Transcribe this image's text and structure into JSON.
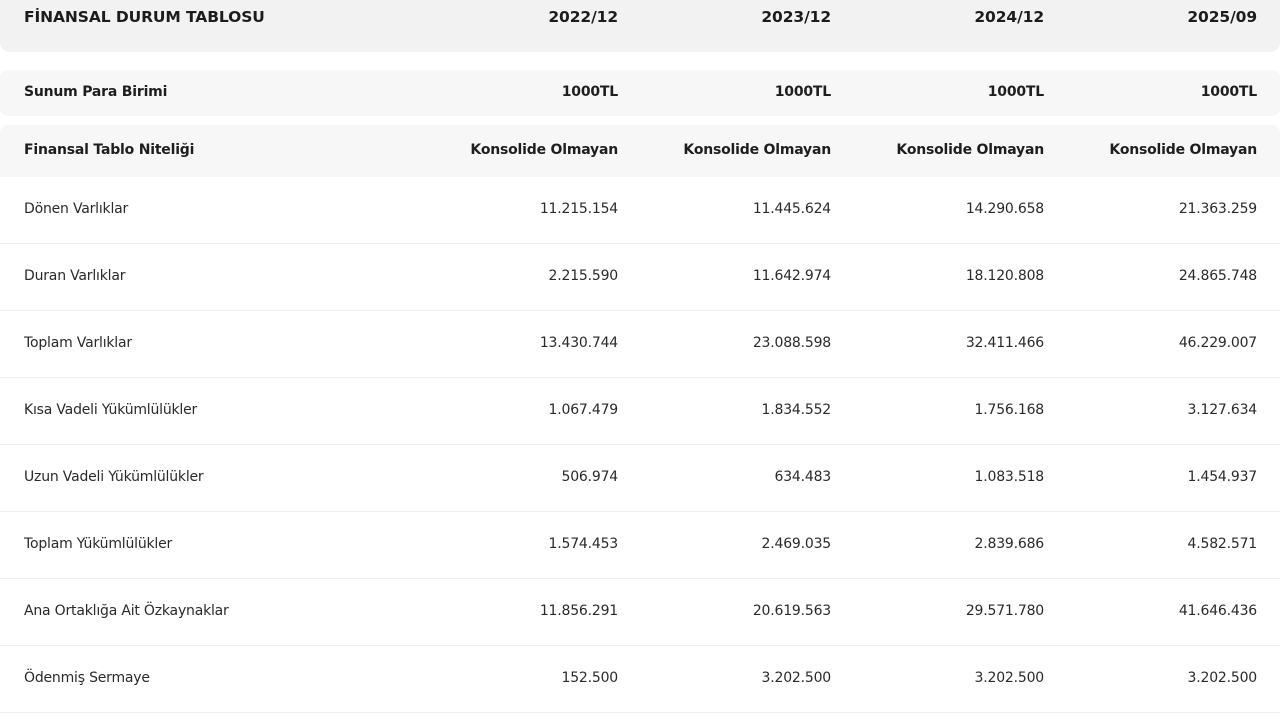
{
  "table": {
    "title": "FİNANSAL DURUM TABLOSU",
    "periods": [
      "2022/12",
      "2023/12",
      "2024/12",
      "2025/09"
    ],
    "currency": {
      "label": "Sunum Para Birimi",
      "values": [
        "1000TL",
        "1000TL",
        "1000TL",
        "1000TL"
      ]
    },
    "nature": {
      "label": "Finansal Tablo Niteliği",
      "values": [
        "Konsolide Olmayan",
        "Konsolide Olmayan",
        "Konsolide Olmayan",
        "Konsolide Olmayan"
      ]
    },
    "rows": [
      {
        "label": "Dönen Varlıklar",
        "values": [
          "11.215.154",
          "11.445.624",
          "14.290.658",
          "21.363.259"
        ]
      },
      {
        "label": "Duran Varlıklar",
        "values": [
          "2.215.590",
          "11.642.974",
          "18.120.808",
          "24.865.748"
        ]
      },
      {
        "label": "Toplam Varlıklar",
        "values": [
          "13.430.744",
          "23.088.598",
          "32.411.466",
          "46.229.007"
        ]
      },
      {
        "label": "Kısa Vadeli Yükümlülükler",
        "values": [
          "1.067.479",
          "1.834.552",
          "1.756.168",
          "3.127.634"
        ]
      },
      {
        "label": "Uzun Vadeli Yükümlülükler",
        "values": [
          "506.974",
          "634.483",
          "1.083.518",
          "1.454.937"
        ]
      },
      {
        "label": "Toplam Yükümlülükler",
        "values": [
          "1.574.453",
          "2.469.035",
          "2.839.686",
          "4.582.571"
        ]
      },
      {
        "label": "Ana Ortaklığa Ait Özkaynaklar",
        "values": [
          "11.856.291",
          "20.619.563",
          "29.571.780",
          "41.646.436"
        ]
      },
      {
        "label": "Ödenmiş Sermaye",
        "values": [
          "152.500",
          "3.202.500",
          "3.202.500",
          "3.202.500"
        ]
      }
    ]
  }
}
